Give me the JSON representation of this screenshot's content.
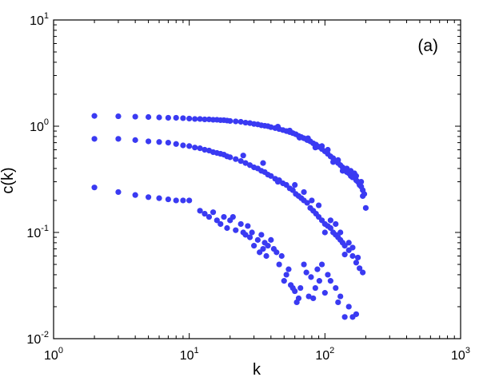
{
  "chart_data": {
    "type": "scatter",
    "xlabel": "k",
    "ylabel": "c(k)",
    "annotation": "(a)",
    "xscale": "log",
    "yscale": "log",
    "xlim": [
      1,
      1000
    ],
    "ylim": [
      0.01,
      10
    ],
    "grid": false,
    "marker_color": "#3a3af2",
    "x_ticks": [
      {
        "base": "10",
        "exp": "0"
      },
      {
        "base": "10",
        "exp": "1"
      },
      {
        "base": "10",
        "exp": "2"
      },
      {
        "base": "10",
        "exp": "3"
      }
    ],
    "y_ticks": [
      {
        "base": "10",
        "exp": "-2"
      },
      {
        "base": "10",
        "exp": "-1"
      },
      {
        "base": "10",
        "exp": "0"
      },
      {
        "base": "10",
        "exp": "1"
      }
    ],
    "series": [
      {
        "points": [
          [
            2,
            1.25
          ],
          [
            3,
            1.24
          ],
          [
            4,
            1.23
          ],
          [
            5,
            1.22
          ],
          [
            6,
            1.21
          ],
          [
            7,
            1.2
          ],
          [
            8,
            1.2
          ],
          [
            9,
            1.19
          ],
          [
            10,
            1.18
          ],
          [
            11,
            1.17
          ],
          [
            12,
            1.17
          ],
          [
            13,
            1.16
          ],
          [
            14,
            1.16
          ],
          [
            15,
            1.15
          ],
          [
            16,
            1.15
          ],
          [
            17,
            1.14
          ],
          [
            18,
            1.14
          ],
          [
            19,
            1.13
          ],
          [
            20,
            1.12
          ],
          [
            22,
            1.11
          ],
          [
            24,
            1.1
          ],
          [
            26,
            1.08
          ],
          [
            28,
            1.07
          ],
          [
            30,
            1.05
          ],
          [
            32,
            1.04
          ],
          [
            34,
            1.02
          ],
          [
            36,
            1.01
          ],
          [
            38,
            1.0
          ],
          [
            40,
            0.98
          ],
          [
            43,
            0.96
          ],
          [
            46,
            0.94
          ],
          [
            49,
            0.92
          ],
          [
            52,
            0.9
          ],
          [
            55,
            0.88
          ],
          [
            58,
            0.86
          ],
          [
            61,
            0.84
          ],
          [
            64,
            0.81
          ],
          [
            67,
            0.79
          ],
          [
            70,
            0.77
          ],
          [
            74,
            0.74
          ],
          [
            78,
            0.72
          ],
          [
            82,
            0.69
          ],
          [
            86,
            0.67
          ],
          [
            90,
            0.64
          ],
          [
            95,
            0.61
          ],
          [
            100,
            0.58
          ],
          [
            105,
            0.55
          ],
          [
            110,
            0.52
          ],
          [
            115,
            0.5
          ],
          [
            120,
            0.47
          ],
          [
            125,
            0.45
          ],
          [
            130,
            0.43
          ],
          [
            135,
            0.41
          ],
          [
            140,
            0.39
          ],
          [
            145,
            0.37
          ],
          [
            150,
            0.36
          ],
          [
            155,
            0.34
          ],
          [
            160,
            0.33
          ],
          [
            165,
            0.36
          ],
          [
            170,
            0.31
          ],
          [
            175,
            0.3
          ],
          [
            180,
            0.28
          ],
          [
            185,
            0.27
          ],
          [
            190,
            0.25
          ],
          [
            195,
            0.23
          ],
          [
            200,
            0.17
          ],
          [
            45,
            0.99
          ],
          [
            55,
            0.91
          ],
          [
            65,
            0.78
          ],
          [
            75,
            0.77
          ],
          [
            85,
            0.63
          ],
          [
            95,
            0.65
          ],
          [
            105,
            0.6
          ],
          [
            115,
            0.46
          ],
          [
            125,
            0.48
          ],
          [
            135,
            0.38
          ],
          [
            145,
            0.4
          ],
          [
            155,
            0.38
          ],
          [
            170,
            0.34
          ],
          [
            185,
            0.3
          ],
          [
            190,
            0.22
          ]
        ]
      },
      {
        "points": [
          [
            2,
            0.76
          ],
          [
            3,
            0.76
          ],
          [
            4,
            0.74
          ],
          [
            5,
            0.72
          ],
          [
            6,
            0.71
          ],
          [
            7,
            0.7
          ],
          [
            8,
            0.68
          ],
          [
            9,
            0.66
          ],
          [
            10,
            0.65
          ],
          [
            11,
            0.63
          ],
          [
            12,
            0.62
          ],
          [
            13,
            0.6
          ],
          [
            14,
            0.59
          ],
          [
            15,
            0.57
          ],
          [
            16,
            0.56
          ],
          [
            17,
            0.55
          ],
          [
            18,
            0.54
          ],
          [
            19,
            0.52
          ],
          [
            20,
            0.51
          ],
          [
            22,
            0.49
          ],
          [
            24,
            0.47
          ],
          [
            26,
            0.45
          ],
          [
            28,
            0.43
          ],
          [
            30,
            0.41
          ],
          [
            32,
            0.4
          ],
          [
            34,
            0.38
          ],
          [
            36,
            0.37
          ],
          [
            38,
            0.35
          ],
          [
            40,
            0.34
          ],
          [
            43,
            0.32
          ],
          [
            46,
            0.31
          ],
          [
            49,
            0.29
          ],
          [
            52,
            0.28
          ],
          [
            55,
            0.26
          ],
          [
            58,
            0.25
          ],
          [
            61,
            0.23
          ],
          [
            64,
            0.22
          ],
          [
            67,
            0.21
          ],
          [
            70,
            0.2
          ],
          [
            74,
            0.19
          ],
          [
            78,
            0.17
          ],
          [
            82,
            0.16
          ],
          [
            86,
            0.15
          ],
          [
            90,
            0.14
          ],
          [
            95,
            0.13
          ],
          [
            100,
            0.12
          ],
          [
            105,
            0.115
          ],
          [
            110,
            0.11
          ],
          [
            115,
            0.1
          ],
          [
            120,
            0.095
          ],
          [
            125,
            0.09
          ],
          [
            130,
            0.085
          ],
          [
            135,
            0.08
          ],
          [
            140,
            0.075
          ],
          [
            150,
            0.068
          ],
          [
            160,
            0.06
          ],
          [
            170,
            0.052
          ],
          [
            180,
            0.046
          ],
          [
            190,
            0.042
          ],
          [
            25,
            0.53
          ],
          [
            35,
            0.45
          ],
          [
            45,
            0.3
          ],
          [
            60,
            0.28
          ],
          [
            70,
            0.24
          ],
          [
            80,
            0.2
          ],
          [
            90,
            0.18
          ],
          [
            100,
            0.1
          ],
          [
            110,
            0.13
          ],
          [
            120,
            0.12
          ],
          [
            130,
            0.1
          ],
          [
            140,
            0.062
          ],
          [
            150,
            0.08
          ],
          [
            160,
            0.072
          ],
          [
            175,
            0.058
          ]
        ]
      },
      {
        "points": [
          [
            2,
            0.265
          ],
          [
            3,
            0.24
          ],
          [
            4,
            0.225
          ],
          [
            5,
            0.215
          ],
          [
            6,
            0.21
          ],
          [
            7,
            0.205
          ],
          [
            8,
            0.2
          ],
          [
            9,
            0.2
          ],
          [
            10,
            0.2
          ],
          [
            12,
            0.16
          ],
          [
            13,
            0.15
          ],
          [
            14,
            0.14
          ],
          [
            15,
            0.155
          ],
          [
            16,
            0.13
          ],
          [
            17,
            0.12
          ],
          [
            18,
            0.14
          ],
          [
            19,
            0.11
          ],
          [
            20,
            0.13
          ],
          [
            21,
            0.14
          ],
          [
            22,
            0.105
          ],
          [
            24,
            0.12
          ],
          [
            25,
            0.1
          ],
          [
            26,
            0.095
          ],
          [
            27,
            0.115
          ],
          [
            28,
            0.09
          ],
          [
            29,
            0.1
          ],
          [
            30,
            0.075
          ],
          [
            32,
            0.085
          ],
          [
            33,
            0.065
          ],
          [
            34,
            0.095
          ],
          [
            35,
            0.07
          ],
          [
            36,
            0.08
          ],
          [
            37,
            0.06
          ],
          [
            38,
            0.075
          ],
          [
            40,
            0.085
          ],
          [
            42,
            0.07
          ],
          [
            44,
            0.065
          ],
          [
            46,
            0.05
          ],
          [
            48,
            0.06
          ],
          [
            50,
            0.035
          ],
          [
            52,
            0.04
          ],
          [
            54,
            0.045
          ],
          [
            56,
            0.032
          ],
          [
            58,
            0.03
          ],
          [
            60,
            0.028
          ],
          [
            62,
            0.022
          ],
          [
            64,
            0.024
          ],
          [
            66,
            0.03
          ],
          [
            70,
            0.05
          ],
          [
            73,
            0.042
          ],
          [
            76,
            0.025
          ],
          [
            79,
            0.038
          ],
          [
            82,
            0.024
          ],
          [
            85,
            0.03
          ],
          [
            88,
            0.045
          ],
          [
            91,
            0.035
          ],
          [
            95,
            0.05
          ],
          [
            100,
            0.027
          ],
          [
            105,
            0.04
          ],
          [
            110,
            0.035
          ],
          [
            120,
            0.03
          ],
          [
            125,
            0.022
          ],
          [
            130,
            0.025
          ],
          [
            140,
            0.016
          ],
          [
            150,
            0.02
          ],
          [
            160,
            0.016
          ],
          [
            170,
            0.017
          ]
        ]
      }
    ]
  }
}
